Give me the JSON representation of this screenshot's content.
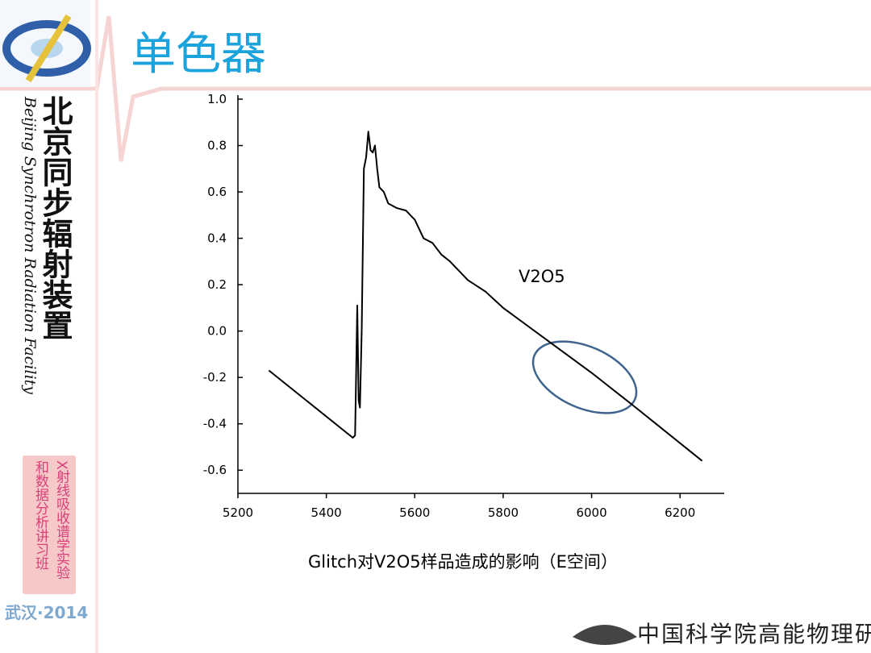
{
  "header": {
    "title": "单色器"
  },
  "sidebar": {
    "org_cn": "北京同步辐射装置",
    "org_en": "Beijing Synchrotron Radiation Facility",
    "course": [
      "X射线吸收谱学实验",
      "和数据分析讲习班"
    ],
    "event": "武汉·2014"
  },
  "footer": {
    "institute": "中国科学院高能物理研究所"
  },
  "chart_data": {
    "type": "line",
    "annotation": "V2O5",
    "caption": "Glitch对V2O5样品造成的影响（E空间）",
    "color": "#000000",
    "x": [
      5270,
      5460,
      5465,
      5470,
      5473,
      5476,
      5480,
      5485,
      5490,
      5495,
      5500,
      5505,
      5510,
      5515,
      5520,
      5530,
      5540,
      5560,
      5580,
      5600,
      5620,
      5640,
      5660,
      5680,
      5720,
      5760,
      5800,
      5900,
      6000,
      6100,
      6250
    ],
    "values": [
      -0.17,
      -0.46,
      -0.45,
      0.11,
      -0.3,
      -0.33,
      0.0,
      0.7,
      0.75,
      0.86,
      0.78,
      0.77,
      0.8,
      0.7,
      0.62,
      0.6,
      0.55,
      0.53,
      0.52,
      0.48,
      0.4,
      0.38,
      0.33,
      0.3,
      0.22,
      0.17,
      0.1,
      -0.04,
      -0.18,
      -0.33,
      -0.56
    ],
    "xlim": [
      5200,
      6300
    ],
    "xticks": [
      5200,
      5400,
      5600,
      5800,
      6000,
      6200
    ],
    "ylim": [
      -0.7,
      1.0
    ],
    "yticks": [
      {
        "value": 1,
        "label": "1.0"
      },
      0.8,
      0.6,
      0.4,
      0.2,
      {
        "value": 0,
        "label": "0.0"
      },
      -0.2,
      -0.4,
      -0.6
    ]
  }
}
